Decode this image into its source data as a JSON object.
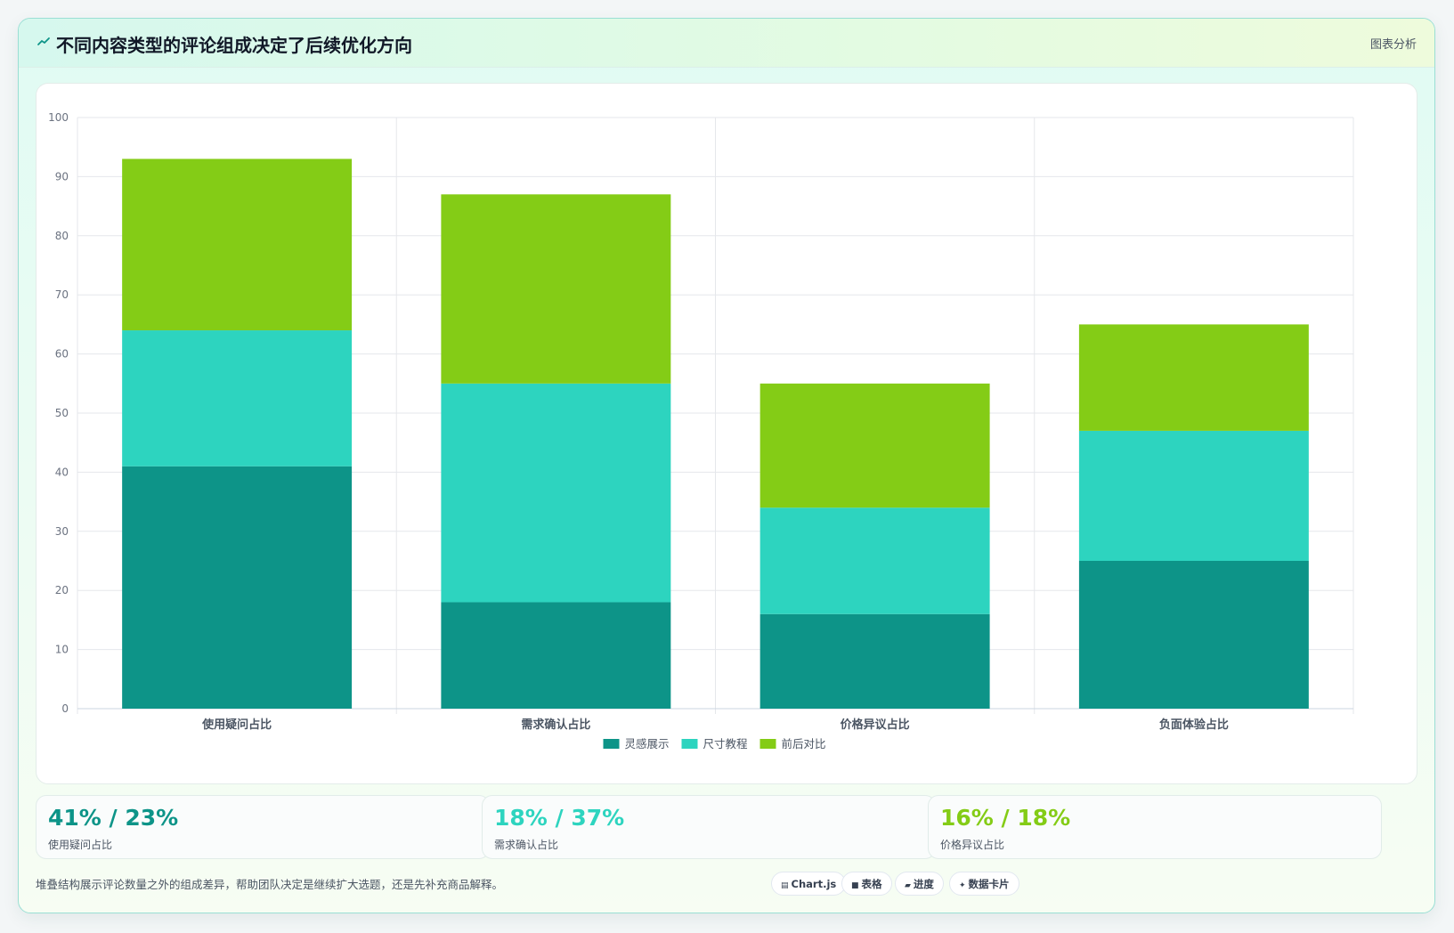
{
  "header": {
    "icon": "chart-spark-icon",
    "title": "不同内容类型的评论组成决定了后续优化方向",
    "badge": "图表分析"
  },
  "chart_data": {
    "type": "bar",
    "stacked": true,
    "title": "",
    "xlabel": "",
    "ylabel": "",
    "categories": [
      "使用疑问占比",
      "需求确认占比",
      "价格异议占比",
      "负面体验占比"
    ],
    "series": [
      {
        "name": "灵感展示",
        "color": "#0d9488",
        "values": [
          41,
          18,
          16,
          25
        ]
      },
      {
        "name": "尺寸教程",
        "color": "#2dd4bf",
        "values": [
          23,
          37,
          18,
          22
        ]
      },
      {
        "name": "前后对比",
        "color": "#84cc16",
        "values": [
          29,
          32,
          21,
          18
        ]
      }
    ],
    "ylim": [
      0,
      100
    ],
    "yticks": [
      0,
      10,
      20,
      30,
      40,
      50,
      60,
      70,
      80,
      90,
      100
    ],
    "grid": true,
    "legend": "bottom-center"
  },
  "stats": [
    {
      "value": "41% / 23%",
      "label": "使用疑问占比",
      "color": "#0d9488"
    },
    {
      "value": "18% / 37%",
      "label": "需求确认占比",
      "color": "#2dd4bf"
    },
    {
      "value": "16% / 18%",
      "label": "价格异议占比",
      "color": "#84cc16"
    }
  ],
  "footer": {
    "note": "堆叠结构展示评论数量之外的组成差异，帮助团队决定是继续扩大选题，还是先补充商品解释。",
    "chips": [
      {
        "icon": "chart-icon",
        "glyph": "▤",
        "label": "Chart.js"
      },
      {
        "icon": "table-icon",
        "glyph": "■",
        "label": "表格"
      },
      {
        "icon": "progress-icon",
        "glyph": "▰",
        "label": "进度"
      },
      {
        "icon": "sparkle-icon",
        "glyph": "✦",
        "label": "数据卡片"
      }
    ]
  }
}
